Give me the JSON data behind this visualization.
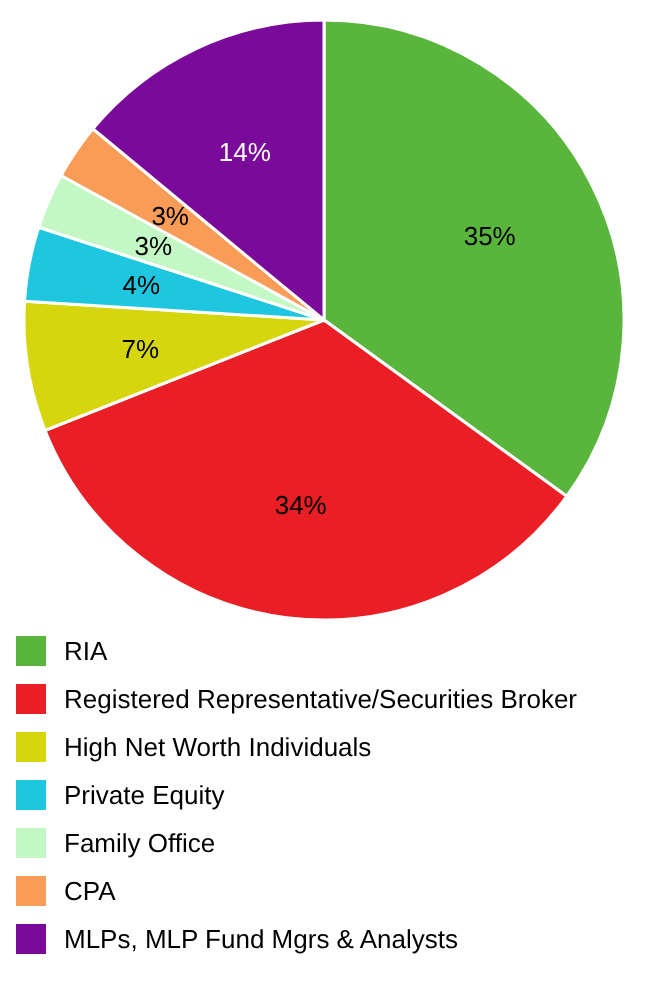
{
  "chart_data": {
    "type": "pie",
    "categories": [
      "RIA",
      "Registered Representative/Securities Broker",
      "High Net Worth Individuals",
      "Private Equity",
      "Family Office",
      "CPA",
      "MLPs, MLP Fund Mgrs & Analysts"
    ],
    "values": [
      35,
      34,
      7,
      4,
      3,
      3,
      14
    ],
    "colors": [
      "#5ab53c",
      "#ea1e25",
      "#d6d60e",
      "#1fc6df",
      "#c3f7c4",
      "#f89c58",
      "#7a0a9a"
    ],
    "value_labels": [
      "35%",
      "34%",
      "7%",
      "4%",
      "3%",
      "3%",
      "14%"
    ],
    "legend": "bottom"
  }
}
